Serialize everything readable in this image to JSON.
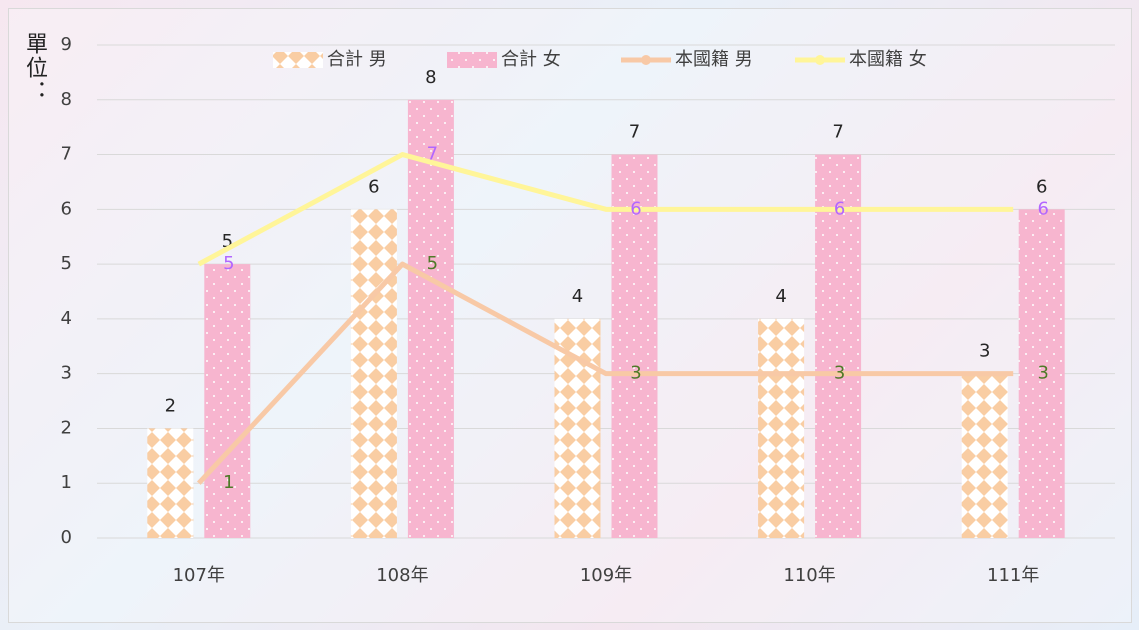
{
  "chart_data": {
    "type": "combo",
    "y_label": "單位：",
    "categories": [
      "107年",
      "108年",
      "109年",
      "110年",
      "111年"
    ],
    "series": [
      {
        "name": "合計 男",
        "type": "bar",
        "color": "#f9cda3",
        "label_color": "#262626",
        "values": [
          2,
          6,
          4,
          4,
          3
        ]
      },
      {
        "name": "合計 女",
        "type": "bar",
        "color": "#f7b5cf",
        "label_color": "#262626",
        "values": [
          5,
          8,
          7,
          7,
          6
        ]
      },
      {
        "name": "本國籍 男",
        "type": "line",
        "color": "#f8c9a6",
        "label_color": "#4f7a28",
        "values": [
          1,
          5,
          3,
          3,
          3
        ]
      },
      {
        "name": "本國籍 女",
        "type": "line",
        "color": "#fff599",
        "label_color": "#b266ff",
        "values": [
          5,
          7,
          6,
          6,
          6
        ]
      }
    ],
    "ylim": [
      0,
      9
    ],
    "yticks": [
      0,
      1,
      2,
      3,
      4,
      5,
      6,
      7,
      8,
      9
    ],
    "grid": true,
    "legend": "top"
  }
}
